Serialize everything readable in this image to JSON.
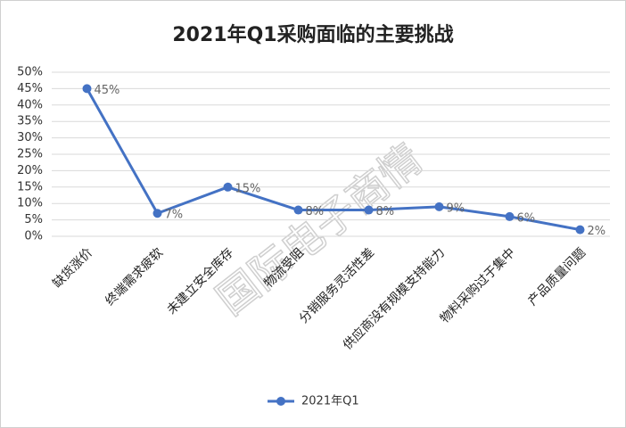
{
  "chart_data": {
    "type": "line",
    "title": "2021年Q1采购面临的主要挑战",
    "categories": [
      "缺货涨价",
      "终端需求疲软",
      "未建立安全库存",
      "物流受阻",
      "分销服务灵活性差",
      "供应商没有规模支持能力",
      "物料采购过于集中",
      "产品质量问题"
    ],
    "series": [
      {
        "name": "2021年Q1",
        "color": "#4472c4",
        "values": [
          45,
          7,
          15,
          8,
          8,
          9,
          6,
          2
        ],
        "value_labels": [
          "45%",
          "7%",
          "15%",
          "8%",
          "8%",
          "9%",
          "6%",
          "2%"
        ]
      }
    ],
    "ylim": [
      0,
      50
    ],
    "yticks": [
      {
        "value": 0,
        "label": "0%"
      },
      {
        "value": 5,
        "label": "5%"
      },
      {
        "value": 10,
        "label": "10%"
      },
      {
        "value": 15,
        "label": "15%"
      },
      {
        "value": 20,
        "label": "20%"
      },
      {
        "value": 25,
        "label": "25%"
      },
      {
        "value": 30,
        "label": "30%"
      },
      {
        "value": 35,
        "label": "35%"
      },
      {
        "value": 40,
        "label": "40%"
      },
      {
        "value": 45,
        "label": "45%"
      },
      {
        "value": 50,
        "label": "50%"
      }
    ],
    "grid": true,
    "legend": "bottom",
    "watermark": "国际电子商情"
  }
}
